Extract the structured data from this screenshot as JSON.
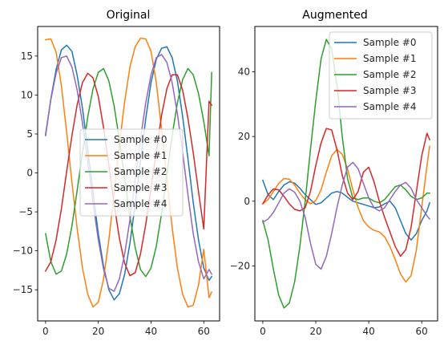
{
  "chart_data": [
    {
      "type": "line",
      "title": "Original",
      "xlabel": "",
      "ylabel": "",
      "xlim": [
        -3,
        66
      ],
      "ylim": [
        -19,
        18.8
      ],
      "xticks": [
        0,
        20,
        40,
        60
      ],
      "yticks": [
        -15,
        -10,
        -5,
        0,
        5,
        10,
        15
      ],
      "grid": false,
      "legend_position": "center",
      "series": [
        {
          "name": "Sample #0",
          "color": "#1f77b4",
          "x": [
            0,
            2,
            4,
            6,
            8,
            10,
            12,
            14,
            16,
            18,
            20,
            22,
            24,
            26,
            28,
            30,
            32,
            34,
            36,
            38,
            40,
            42,
            44,
            46,
            48,
            50,
            52,
            54,
            56,
            58,
            60,
            62,
            63
          ],
          "values": [
            4.8,
            9.5,
            13.3,
            15.8,
            16.4,
            15.6,
            12.5,
            8.3,
            3.0,
            -2.5,
            -7.8,
            -12.0,
            -15.0,
            -16.3,
            -15.5,
            -13.0,
            -9.0,
            -4.0,
            1.5,
            7.0,
            11.6,
            14.6,
            16.0,
            16.2,
            14.8,
            11.8,
            7.2,
            1.8,
            -3.8,
            -8.6,
            -12.2,
            -13.8,
            -13.3
          ]
        },
        {
          "name": "Sample #1",
          "color": "#ff7f0e",
          "x": [
            0,
            2,
            4,
            6,
            8,
            10,
            12,
            14,
            16,
            18,
            20,
            22,
            24,
            26,
            28,
            30,
            32,
            34,
            36,
            38,
            40,
            42,
            44,
            46,
            48,
            50,
            52,
            54,
            56,
            58,
            60,
            62,
            63
          ],
          "values": [
            17.1,
            17.2,
            15.5,
            11.2,
            5.2,
            -1.2,
            -7.2,
            -12.2,
            -15.6,
            -17.2,
            -16.6,
            -13.6,
            -8.6,
            -2.6,
            3.6,
            9.2,
            13.6,
            16.2,
            17.3,
            17.2,
            15.6,
            11.6,
            5.6,
            -0.8,
            -7.0,
            -12.2,
            -15.6,
            -17.2,
            -17.0,
            -14.4,
            -9.8,
            -16.0,
            -15.3
          ]
        },
        {
          "name": "Sample #2",
          "color": "#2ca02c",
          "x": [
            0,
            2,
            4,
            6,
            8,
            10,
            12,
            14,
            16,
            18,
            20,
            22,
            24,
            26,
            28,
            30,
            32,
            34,
            36,
            38,
            40,
            42,
            44,
            46,
            48,
            50,
            52,
            54,
            56,
            58,
            60,
            62,
            63
          ],
          "values": [
            -7.8,
            -11.4,
            -13.0,
            -12.6,
            -10.4,
            -6.8,
            -2.2,
            2.6,
            7.2,
            10.8,
            12.9,
            13.4,
            11.8,
            8.6,
            4.2,
            -0.8,
            -5.6,
            -9.6,
            -12.4,
            -13.3,
            -12.2,
            -9.4,
            -5.2,
            -0.2,
            4.8,
            9.0,
            12.0,
            13.4,
            12.6,
            10.2,
            6.6,
            2.2,
            12.9
          ]
        },
        {
          "name": "Sample #3",
          "color": "#d62728",
          "x": [
            0,
            2,
            4,
            6,
            8,
            10,
            12,
            14,
            16,
            18,
            20,
            22,
            24,
            26,
            28,
            30,
            32,
            34,
            36,
            38,
            40,
            42,
            44,
            46,
            48,
            50,
            52,
            54,
            56,
            58,
            60,
            62,
            63
          ],
          "values": [
            -12.6,
            -11.4,
            -8.6,
            -4.6,
            0.2,
            4.8,
            8.8,
            11.6,
            12.8,
            12.2,
            9.8,
            5.8,
            1.0,
            -4.0,
            -8.4,
            -11.6,
            -13.2,
            -12.8,
            -10.4,
            -6.6,
            -2.0,
            2.8,
            7.4,
            10.8,
            12.6,
            12.6,
            10.6,
            7.0,
            2.6,
            -2.4,
            -7.2,
            9.2,
            8.7
          ]
        },
        {
          "name": "Sample #4",
          "color": "#9467bd",
          "x": [
            0,
            2,
            4,
            6,
            8,
            10,
            12,
            14,
            16,
            18,
            20,
            22,
            24,
            26,
            28,
            30,
            32,
            34,
            36,
            38,
            40,
            42,
            44,
            46,
            48,
            50,
            52,
            54,
            56,
            58,
            60,
            62,
            63
          ],
          "values": [
            5.0,
            9.4,
            12.8,
            14.8,
            15.0,
            13.6,
            10.6,
            6.4,
            1.4,
            -3.8,
            -8.6,
            -12.4,
            -14.8,
            -15.2,
            -13.6,
            -10.4,
            -6.0,
            -0.8,
            4.4,
            9.0,
            12.6,
            14.8,
            15.2,
            14.2,
            11.6,
            7.6,
            2.6,
            -2.8,
            -7.8,
            -11.4,
            -13.6,
            -12.4,
            -13.0
          ]
        }
      ]
    },
    {
      "type": "line",
      "title": "Augmented",
      "xlabel": "",
      "ylabel": "",
      "xlim": [
        -3,
        66
      ],
      "ylim": [
        -37,
        54
      ],
      "xticks": [
        0,
        20,
        40,
        60
      ],
      "yticks": [
        -20,
        0,
        20,
        40
      ],
      "grid": false,
      "legend_position": "upper right",
      "series": [
        {
          "name": "Sample #0",
          "color": "#1f77b4",
          "x": [
            0,
            2,
            4,
            6,
            8,
            10,
            12,
            14,
            16,
            18,
            20,
            22,
            24,
            26,
            28,
            30,
            32,
            34,
            36,
            38,
            40,
            42,
            44,
            46,
            48,
            50,
            52,
            54,
            56,
            58,
            60,
            62,
            63
          ],
          "values": [
            6.5,
            2.0,
            0.5,
            3.0,
            5.0,
            6.0,
            5.6,
            4.0,
            2.0,
            0.5,
            -1.0,
            -0.5,
            1.0,
            2.5,
            3.0,
            2.5,
            1.2,
            0.0,
            -0.5,
            -1.0,
            -1.5,
            -2.0,
            -1.8,
            -0.8,
            0.0,
            -2.0,
            -6.0,
            -10.0,
            -12.0,
            -10.0,
            -6.0,
            -3.0,
            -0.5
          ]
        },
        {
          "name": "Sample #1",
          "color": "#ff7f0e",
          "x": [
            0,
            2,
            4,
            6,
            8,
            10,
            12,
            14,
            16,
            18,
            20,
            22,
            24,
            26,
            28,
            30,
            32,
            34,
            36,
            38,
            40,
            42,
            44,
            46,
            48,
            50,
            52,
            54,
            56,
            58,
            60,
            62,
            63
          ],
          "values": [
            -0.8,
            0.5,
            3.0,
            5.5,
            7.0,
            6.8,
            5.0,
            2.5,
            0.5,
            -0.8,
            0.2,
            3.5,
            9.0,
            14.0,
            16.0,
            14.5,
            10.0,
            3.5,
            -2.0,
            -6.0,
            -8.0,
            -9.0,
            -9.5,
            -11.0,
            -14.0,
            -18.0,
            -22.5,
            -25.0,
            -23.0,
            -15.0,
            -2.0,
            11.0,
            17.0
          ]
        },
        {
          "name": "Sample #2",
          "color": "#2ca02c",
          "x": [
            0,
            2,
            4,
            6,
            8,
            10,
            12,
            14,
            16,
            18,
            20,
            22,
            24,
            26,
            28,
            30,
            32,
            34,
            36,
            38,
            40,
            42,
            44,
            46,
            48,
            50,
            52,
            54,
            56,
            58,
            60,
            62,
            63
          ],
          "values": [
            -6.0,
            -12.0,
            -21.0,
            -29.0,
            -33.0,
            -31.5,
            -25.0,
            -14.0,
            0.0,
            16.0,
            31.0,
            44.0,
            50.0,
            47.0,
            36.0,
            20.0,
            7.0,
            1.0,
            0.5,
            1.0,
            1.0,
            0.0,
            -0.5,
            0.5,
            2.5,
            4.5,
            5.0,
            3.5,
            1.5,
            0.5,
            1.0,
            2.5,
            2.5
          ]
        },
        {
          "name": "Sample #3",
          "color": "#d62728",
          "x": [
            0,
            2,
            4,
            6,
            8,
            10,
            12,
            14,
            16,
            18,
            20,
            22,
            24,
            26,
            28,
            30,
            32,
            34,
            36,
            38,
            40,
            42,
            44,
            46,
            48,
            50,
            52,
            54,
            56,
            58,
            60,
            62,
            63
          ],
          "values": [
            -0.8,
            2.0,
            3.8,
            3.5,
            1.5,
            -0.8,
            -2.5,
            -3.0,
            -2.0,
            3.0,
            11.0,
            18.0,
            22.5,
            22.0,
            16.0,
            8.0,
            2.5,
            0.5,
            3.0,
            9.0,
            10.5,
            6.0,
            0.0,
            -5.0,
            -9.5,
            -14.0,
            -17.0,
            -15.0,
            -8.0,
            3.0,
            14.0,
            21.0,
            19.0
          ]
        },
        {
          "name": "Sample #4",
          "color": "#9467bd",
          "x": [
            0,
            2,
            4,
            6,
            8,
            10,
            12,
            14,
            16,
            18,
            20,
            22,
            24,
            26,
            28,
            30,
            32,
            34,
            36,
            38,
            40,
            42,
            44,
            46,
            48,
            50,
            52,
            54,
            56,
            58,
            60,
            62,
            63
          ],
          "values": [
            -6.5,
            -5.5,
            -3.5,
            -0.5,
            2.5,
            3.8,
            2.8,
            0.0,
            -5.0,
            -13.0,
            -19.5,
            -21.0,
            -17.0,
            -10.0,
            -2.0,
            5.0,
            10.5,
            12.0,
            10.0,
            5.5,
            1.0,
            -2.0,
            -3.0,
            -2.0,
            0.5,
            3.0,
            5.0,
            5.8,
            4.0,
            0.5,
            -2.0,
            -4.5,
            -5.5
          ]
        }
      ]
    }
  ]
}
